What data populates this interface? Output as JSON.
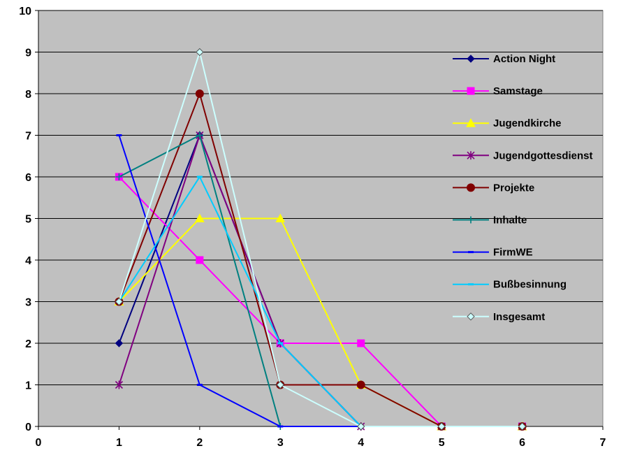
{
  "chart_data": {
    "type": "line",
    "title": "",
    "xlabel": "",
    "ylabel": "",
    "xlim": [
      0,
      7
    ],
    "ylim": [
      0,
      10
    ],
    "x_ticks": [
      "0",
      "1",
      "2",
      "3",
      "4",
      "5",
      "6",
      "7"
    ],
    "y_ticks": [
      "0",
      "1",
      "2",
      "3",
      "4",
      "5",
      "6",
      "7",
      "8",
      "9",
      "10"
    ],
    "grid": "horizontal",
    "legend_position": "right-inside",
    "plot_background": "#c0c0c0",
    "series": [
      {
        "name": "Action Night",
        "color": "#000080",
        "marker": "diamond",
        "x": [
          1,
          2,
          3,
          4,
          5,
          6
        ],
        "values": [
          2,
          7,
          2,
          0,
          0,
          0
        ]
      },
      {
        "name": "Samstage",
        "color": "#ff00ff",
        "marker": "square",
        "x": [
          1,
          2,
          3,
          4,
          5,
          6
        ],
        "values": [
          6,
          4,
          2,
          2,
          0,
          0
        ]
      },
      {
        "name": "Jugendkirche",
        "color": "#ffff00",
        "marker": "triangle",
        "x": [
          1,
          2,
          3,
          4,
          5,
          6
        ],
        "values": [
          3,
          5,
          5,
          1,
          0,
          0
        ]
      },
      {
        "name": "Jugendgottesdienst",
        "color": "#800080",
        "marker": "star",
        "x": [
          1,
          2,
          3,
          4,
          5,
          6
        ],
        "values": [
          1,
          7,
          2,
          0,
          0,
          0
        ]
      },
      {
        "name": "Projekte",
        "color": "#800000",
        "marker": "circle",
        "x": [
          1,
          2,
          3,
          4,
          5,
          6
        ],
        "values": [
          3,
          8,
          1,
          1,
          0,
          0
        ]
      },
      {
        "name": "Inhalte",
        "color": "#008080",
        "marker": "plus",
        "x": [
          1,
          2,
          3,
          4,
          5,
          6
        ],
        "values": [
          6,
          7,
          0,
          0,
          0,
          0
        ]
      },
      {
        "name": "FirmWE",
        "color": "#0000ff",
        "marker": "dash",
        "x": [
          1,
          2,
          3,
          4,
          5,
          6
        ],
        "values": [
          7,
          1,
          0,
          0,
          0,
          0
        ]
      },
      {
        "name": "Bußbesinnung",
        "color": "#00ccff",
        "marker": "dash",
        "x": [
          1,
          2,
          3,
          4,
          5,
          6
        ],
        "values": [
          3,
          6,
          2,
          0,
          0,
          0
        ]
      },
      {
        "name": "Insgesamt",
        "color": "#ccffff",
        "marker": "diamond",
        "x": [
          1,
          2,
          3,
          4,
          5,
          6
        ],
        "values": [
          3,
          9,
          1,
          0,
          0,
          0
        ]
      }
    ]
  }
}
